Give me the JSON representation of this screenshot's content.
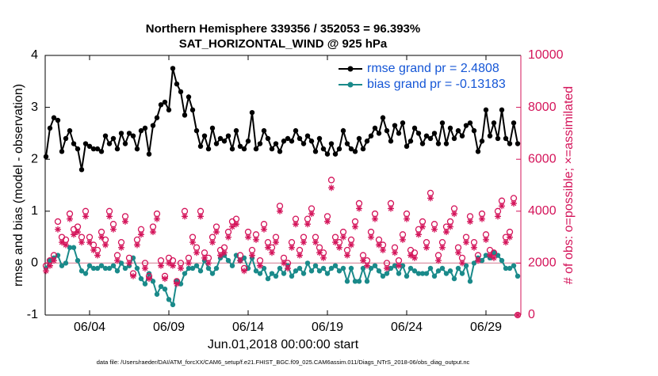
{
  "chart_data": {
    "type": "line",
    "title": "Northern Hemisphere 339356 / 352053 = 96.393%",
    "subtitle": "SAT_HORIZONTAL_WIND @ 925 hPa",
    "xlabel": "Jun.01,2018 00:00:00 start",
    "ylabel": "rmse and bias (model - observation)",
    "y2label": "# of obs: o=possible; ×=assimilated",
    "footnote": "data file: /Users/raeder/DAI/ATM_forcXX/CAM6_setup/f.e21.FHIST_BGC.f09_025.CAM6assim.011/Diags_NTrS_2018-06/obs_diag_output.nc",
    "xlim": [
      0.2,
      30.2
    ],
    "xticks": [
      {
        "value": 3,
        "label": "06/04"
      },
      {
        "value": 8,
        "label": "06/09"
      },
      {
        "value": 13,
        "label": "06/14"
      },
      {
        "value": 18,
        "label": "06/19"
      },
      {
        "value": 23,
        "label": "06/24"
      },
      {
        "value": 28,
        "label": "06/29"
      }
    ],
    "ylim": [
      -1,
      4
    ],
    "yticks": [
      -1,
      0,
      1,
      2,
      3,
      4
    ],
    "y2lim": [
      0,
      10000
    ],
    "y2ticks": [
      0,
      2000,
      4000,
      6000,
      8000,
      10000
    ],
    "legend": "upper right",
    "x": [
      0.25,
      0.5,
      0.75,
      1,
      1.25,
      1.5,
      1.75,
      2,
      2.25,
      2.5,
      2.75,
      3,
      3.25,
      3.5,
      3.75,
      4,
      4.25,
      4.5,
      4.75,
      5,
      5.25,
      5.5,
      5.75,
      6,
      6.25,
      6.5,
      6.75,
      7,
      7.25,
      7.5,
      7.75,
      8,
      8.25,
      8.5,
      8.75,
      9,
      9.25,
      9.5,
      9.75,
      10,
      10.25,
      10.5,
      10.75,
      11,
      11.25,
      11.5,
      11.75,
      12,
      12.25,
      12.5,
      12.75,
      13,
      13.25,
      13.5,
      13.75,
      14,
      14.25,
      14.5,
      14.75,
      15,
      15.25,
      15.5,
      15.75,
      16,
      16.25,
      16.5,
      16.75,
      17,
      17.25,
      17.5,
      17.75,
      18,
      18.25,
      18.5,
      18.75,
      19,
      19.25,
      19.5,
      19.75,
      20,
      20.25,
      20.5,
      20.75,
      21,
      21.25,
      21.5,
      21.75,
      22,
      22.25,
      22.5,
      22.75,
      23,
      23.25,
      23.5,
      23.75,
      24,
      24.25,
      24.5,
      24.75,
      25,
      25.25,
      25.5,
      25.75,
      26,
      26.25,
      26.5,
      26.75,
      27,
      27.25,
      27.5,
      27.75,
      28,
      28.25,
      28.5,
      28.75,
      29,
      29.25,
      29.5,
      29.75,
      30
    ],
    "series": [
      {
        "name": "rmse grand pr = 2.4808",
        "color": "#000000",
        "marker": "dot",
        "values": [
          2.05,
          2.6,
          2.8,
          2.75,
          2.15,
          2.4,
          2.55,
          2.3,
          2.2,
          1.8,
          2.3,
          2.25,
          2.2,
          2.2,
          2.15,
          2.45,
          2.3,
          2.4,
          2.2,
          2.5,
          2.3,
          2.5,
          2.45,
          2.2,
          2.55,
          2.6,
          2.1,
          2.65,
          2.8,
          3.05,
          3.1,
          2.95,
          3.75,
          3.45,
          3.3,
          2.85,
          3.2,
          2.95,
          2.55,
          2.25,
          2.45,
          2.2,
          2.6,
          2.3,
          2.4,
          2.35,
          2.45,
          2.2,
          2.55,
          2.25,
          2.2,
          2.35,
          2.9,
          2.2,
          2.3,
          2.55,
          2.4,
          2.2,
          2.3,
          2.15,
          2.35,
          2.4,
          2.35,
          2.55,
          2.4,
          2.3,
          2.45,
          2.35,
          2.15,
          2.4,
          2.2,
          2.1,
          2.3,
          2.1,
          2.2,
          2.55,
          2.3,
          2.2,
          2.15,
          2.4,
          2.2,
          2.35,
          2.45,
          2.6,
          2.5,
          2.8,
          2.55,
          2.35,
          2.65,
          2.5,
          2.7,
          2.25,
          2.35,
          2.6,
          2.5,
          2.3,
          2.45,
          2.4,
          2.5,
          2.3,
          2.7,
          2.3,
          2.6,
          2.4,
          2.55,
          2.45,
          2.65,
          2.7,
          2.55,
          2.15,
          2.35,
          2.95,
          2.45,
          2.7,
          2.4,
          2.95,
          2.4,
          2.3,
          2.7,
          2.3
        ]
      },
      {
        "name": "bias grand pr = -0.13183",
        "color": "#1a8a8a",
        "marker": "dot",
        "values": [
          -0.1,
          0.05,
          0.1,
          0.15,
          -0.05,
          0.0,
          0.3,
          0.3,
          0.05,
          -0.15,
          -0.2,
          -0.05,
          -0.1,
          -0.1,
          -0.05,
          -0.1,
          -0.1,
          -0.05,
          -0.15,
          0.0,
          -0.1,
          -0.05,
          0.1,
          -0.1,
          -0.3,
          -0.4,
          -0.2,
          -0.35,
          -0.6,
          -0.45,
          -0.5,
          -0.7,
          -0.8,
          -0.35,
          -0.4,
          -0.2,
          -0.1,
          -0.1,
          -0.05,
          -0.15,
          0.05,
          -0.1,
          -0.2,
          -0.1,
          0.1,
          0.15,
          0.05,
          -0.05,
          0.15,
          0.05,
          0.1,
          -0.1,
          0.1,
          -0.15,
          -0.2,
          -0.1,
          -0.3,
          -0.2,
          -0.25,
          -0.1,
          -0.2,
          -0.05,
          -0.25,
          -0.15,
          -0.1,
          -0.2,
          0.0,
          -0.15,
          -0.05,
          -0.15,
          -0.1,
          -0.2,
          -0.1,
          -0.05,
          -0.15,
          -0.1,
          -0.35,
          -0.1,
          -0.35,
          -0.35,
          -0.1,
          -0.35,
          -0.1,
          -0.05,
          -0.15,
          -0.25,
          -0.2,
          -0.1,
          -0.05,
          -0.2,
          -0.05,
          -0.25,
          -0.1,
          -0.15,
          -0.2,
          -0.2,
          -0.2,
          -0.1,
          -0.25,
          -0.15,
          -0.1,
          -0.2,
          -0.15,
          -0.3,
          -0.1,
          -0.2,
          -0.05,
          -0.35,
          0.0,
          0.1,
          0.05,
          0.15,
          0.1,
          0.2,
          0.15,
          0.05,
          -0.1,
          -0.1,
          -0.05,
          -0.25
        ]
      },
      {
        "color": "#d4145a",
        "marker": "circle",
        "axis": "y2",
        "values": [
          1900,
          2100,
          2300,
          3600,
          3000,
          2900,
          3900,
          3300,
          3400,
          3000,
          4000,
          3000,
          2700,
          2500,
          3200,
          2900,
          4000,
          3500,
          2300,
          2800,
          3800,
          2200,
          1600,
          2900,
          3300,
          2000,
          1500,
          3400,
          3900,
          2100,
          1500,
          2200,
          2100,
          1300,
          2000,
          4000,
          2200,
          3000,
          2600,
          4000,
          2400,
          2200,
          3000,
          3400,
          2500,
          2600,
          3200,
          3600,
          3700,
          2300,
          1800,
          3200,
          2500,
          3100,
          2100,
          3500,
          2800,
          2600,
          3000,
          4200,
          2200,
          2000,
          2800,
          3700,
          2500,
          3000,
          3700,
          4100,
          3000,
          2600,
          2400,
          3800,
          5200,
          3000,
          2800,
          3200,
          2500,
          2900,
          3600,
          4300,
          2300,
          2100,
          3200,
          3900,
          2900,
          2700,
          2000,
          4300,
          2600,
          2100,
          3100,
          3900,
          2500,
          2400,
          3300,
          3600,
          2800,
          4700,
          3500,
          2300,
          2800,
          3400,
          3600,
          4100,
          2600,
          2200,
          3000,
          3800,
          2800,
          2300,
          3900,
          3100,
          2500,
          2400,
          4000,
          4400,
          3000,
          3200,
          4500,
          0
        ]
      },
      {
        "color": "#d4145a",
        "marker": "star",
        "axis": "y2",
        "values": [
          1700,
          1900,
          2100,
          3300,
          2800,
          2700,
          3700,
          3100,
          3200,
          2800,
          3800,
          2800,
          2500,
          2300,
          3000,
          2700,
          3800,
          3300,
          2100,
          2600,
          3600,
          2000,
          1500,
          2700,
          3100,
          1800,
          1400,
          3200,
          3700,
          1900,
          1400,
          2000,
          1900,
          1200,
          1800,
          3800,
          2000,
          2800,
          2400,
          3800,
          2200,
          2000,
          2800,
          3200,
          2300,
          2400,
          3000,
          3400,
          3500,
          2100,
          1700,
          3000,
          2300,
          2900,
          1900,
          3300,
          2600,
          2400,
          2800,
          4000,
          2000,
          1800,
          2600,
          3500,
          2300,
          2800,
          3500,
          3900,
          2800,
          2400,
          2200,
          3600,
          4900,
          2800,
          2600,
          3000,
          2300,
          2700,
          3400,
          4100,
          2100,
          1900,
          3000,
          3700,
          2700,
          2500,
          1800,
          4100,
          2400,
          1900,
          2900,
          3700,
          2300,
          2200,
          3100,
          3400,
          2600,
          4500,
          3300,
          2100,
          2600,
          3200,
          3400,
          3900,
          2400,
          2000,
          2800,
          3600,
          2600,
          2100,
          3700,
          2900,
          2300,
          2200,
          3800,
          4200,
          2800,
          3000,
          4300,
          0
        ]
      }
    ]
  }
}
